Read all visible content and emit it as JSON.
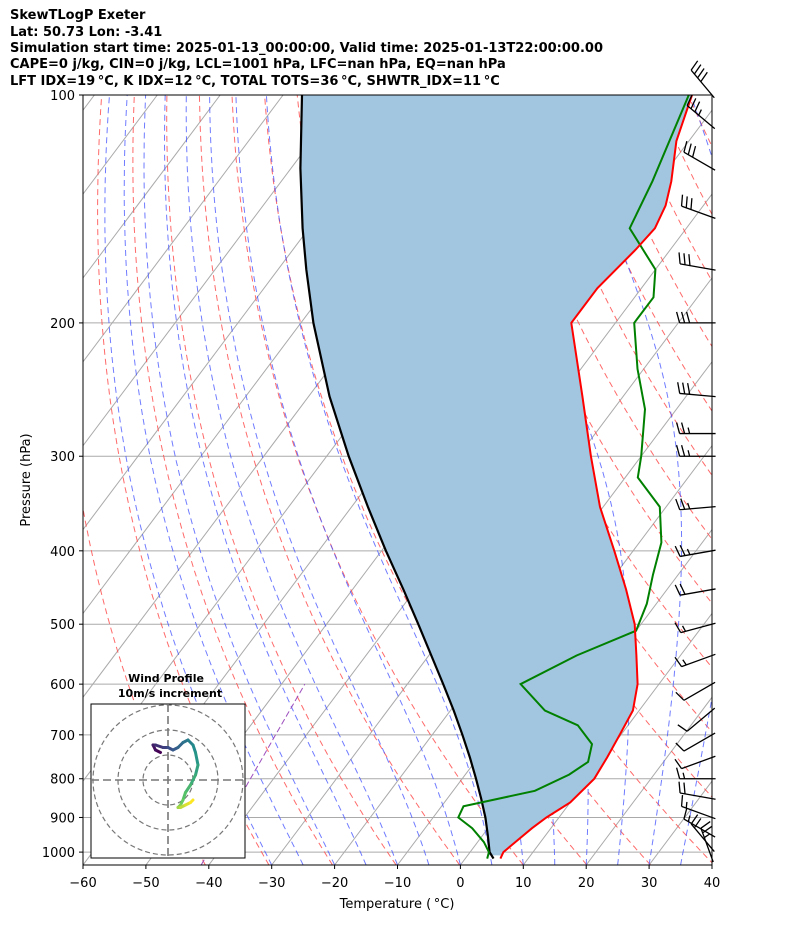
{
  "header": {
    "line1": "SkewTLogP Exeter",
    "line2": "Lat: 50.73   Lon: -3.41",
    "line3": "Simulation start time: 2025-01-13_00:00:00, Valid time: 2025-01-13T22:00:00.00",
    "line4": "CAPE=0 j/kg, CIN=0 j/kg, LCL=1001 hPa, LFC=nan hPa, EQ=nan hPa",
    "line5": "LFT IDX=19 °C, K IDX=12 °C, TOTAL TOTS=36 °C, SHWTR_IDX=11 °C"
  },
  "colors": {
    "temperature": "#ff0000",
    "dewpoint": "#008000",
    "parcel": "#000000",
    "cape_fill": "#a2c6df",
    "isotherm": "#aaaaaa",
    "dry_adiabat": "#ff5050",
    "moist_adiabat": "#4050ff",
    "mixing_ratio": "#9d4ebd"
  },
  "chart_data": [
    {
      "type": "skewt",
      "title": "SkewTLogP Exeter",
      "xlabel": "Temperature ( °C)",
      "ylabel": "Pressure (hPa)",
      "xlim": [
        -60,
        40
      ],
      "ylim": [
        1040,
        100
      ],
      "x_ticks": [
        -60,
        -50,
        -40,
        -30,
        -20,
        -10,
        0,
        10,
        20,
        30,
        40
      ],
      "x_tick_labels": [
        "−60",
        "−50",
        "−40",
        "−30",
        "−20",
        "−10",
        "0",
        "10",
        "20",
        "30",
        "40"
      ],
      "y_ticks": [
        1000,
        900,
        800,
        700,
        600,
        500,
        400,
        300,
        200,
        100
      ],
      "y_tick_labels": [
        "1000",
        "900",
        "800",
        "700",
        "600",
        "500",
        "400",
        "300",
        "200",
        "100"
      ],
      "series": [
        {
          "name": "Temperature",
          "pressure": [
            1020,
            1000,
            970,
            930,
            900,
            860,
            800,
            750,
            700,
            650,
            600,
            550,
            500,
            450,
            400,
            350,
            300,
            250,
            200,
            180,
            160,
            150,
            140,
            130,
            115,
            100
          ],
          "values": [
            5.6,
            5.3,
            6.0,
            7.0,
            8.0,
            10.0,
            11.0,
            10.5,
            9.8,
            9.0,
            6.6,
            3.0,
            -1.0,
            -6.5,
            -13.0,
            -20.5,
            -28.0,
            -36.5,
            -47.0,
            -47.0,
            -45.5,
            -45.0,
            -46.0,
            -48.0,
            -52.0,
            -55.0
          ]
        },
        {
          "name": "Dewpoint",
          "pressure": [
            1020,
            1000,
            970,
            930,
            900,
            870,
            830,
            790,
            760,
            720,
            680,
            650,
            600,
            550,
            510,
            470,
            430,
            390,
            350,
            320,
            300,
            260,
            230,
            200,
            185,
            170,
            150,
            130,
            100
          ],
          "values": [
            3.5,
            3.0,
            1.0,
            -2.5,
            -6.0,
            -6.5,
            3.0,
            6.5,
            8.0,
            6.5,
            2.0,
            -5.0,
            -12.0,
            -6.5,
            0.0,
            -1.5,
            -4.0,
            -6.5,
            -11.0,
            -18.0,
            -20.0,
            -25.0,
            -31.0,
            -37.0,
            -37.0,
            -40.0,
            -49.0,
            -51.0,
            -55.5
          ]
        },
        {
          "name": "Parcel",
          "pressure": [
            1020,
            1000,
            950,
            900,
            850,
            800,
            750,
            700,
            650,
            600,
            550,
            500,
            450,
            400,
            350,
            300,
            250,
            200,
            170,
            150,
            125,
            100
          ],
          "values": [
            4.5,
            3.1,
            0.8,
            -1.7,
            -4.6,
            -7.8,
            -11.3,
            -15.2,
            -19.5,
            -24.3,
            -29.6,
            -35.4,
            -41.9,
            -49.3,
            -57.4,
            -66.5,
            -76.7,
            -88.0,
            -95.5,
            -101.0,
            -108.5,
            -117.0
          ]
        }
      ],
      "wind_barbs": {
        "units": "kt",
        "pressure": [
          1020,
          990,
          950,
          900,
          850,
          800,
          750,
          700,
          650,
          600,
          550,
          500,
          450,
          400,
          350,
          300,
          280,
          250,
          200,
          170,
          145,
          125,
          110,
          100
        ],
        "speed": [
          25,
          20,
          15,
          15,
          20,
          15,
          10,
          10,
          10,
          10,
          15,
          15,
          20,
          25,
          25,
          25,
          25,
          30,
          30,
          30,
          30,
          30,
          35,
          40
        ],
        "direction": [
          340,
          320,
          300,
          290,
          280,
          270,
          250,
          240,
          230,
          240,
          250,
          255,
          260,
          260,
          265,
          270,
          270,
          275,
          270,
          280,
          290,
          300,
          310,
          320
        ]
      }
    },
    {
      "type": "hodograph",
      "title": "Wind Profile",
      "subtitle": "10m/s increment",
      "rings": [
        10,
        20,
        30
      ],
      "u": [
        -3,
        -5,
        -6,
        -5,
        -2,
        0,
        2,
        4,
        6,
        8,
        10,
        11,
        12,
        11,
        9,
        7,
        6,
        5,
        4,
        5,
        7,
        9,
        10
      ],
      "v": [
        11,
        12,
        14,
        14,
        13,
        13,
        12,
        13,
        15,
        16,
        14,
        11,
        6,
        2,
        -2,
        -5,
        -8,
        -10,
        -11,
        -11,
        -10,
        -9,
        -8
      ]
    }
  ]
}
